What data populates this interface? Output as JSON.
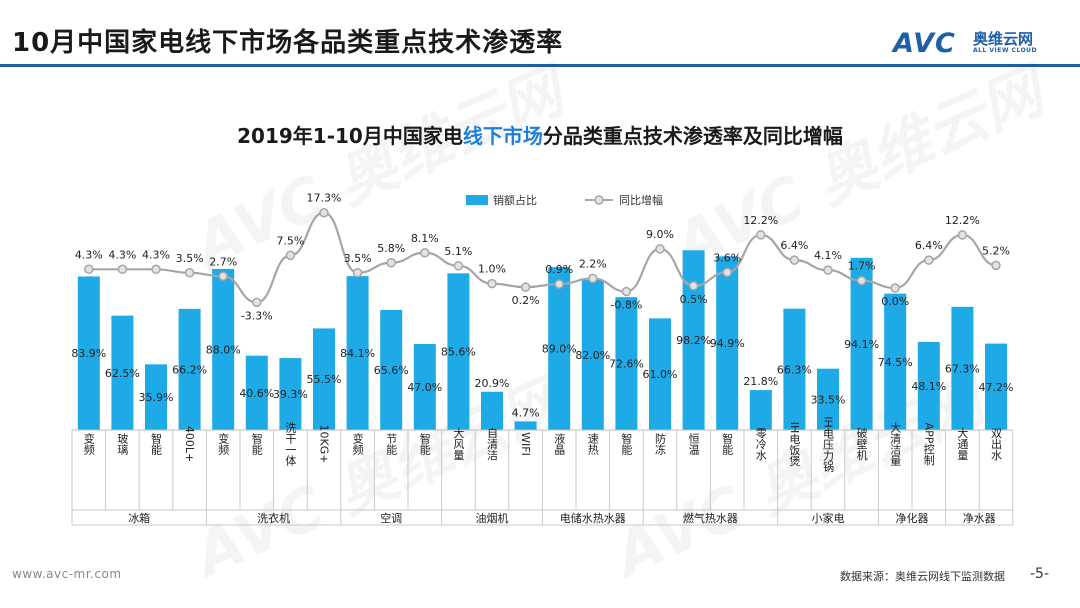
{
  "page_title": "10月中国家电线下市场各品类重点技术渗透率",
  "logo": {
    "mark": "AVC",
    "cn": "奥维云网",
    "en": "ALL VIEW CLOUD"
  },
  "chart_title": {
    "before": "2019年1-10月中国家电",
    "highlight": "线下市场",
    "after": "分品类重点技术渗透率及同比增幅"
  },
  "watermark": "AVC 奥维云网",
  "footer": {
    "url": "www.avc-mr.com",
    "source": "数据来源：奥维云网线下监测数据",
    "page": "-5-"
  },
  "colors": {
    "bar": "#1eaae7",
    "line": "#a6a6a6",
    "marker_fill": "#e3e3e3",
    "brand": "#1f5fa8",
    "highlight": "#1f7fd6"
  },
  "chart_data": {
    "type": "bar",
    "legend_position": "top-center",
    "grid": false,
    "series": [
      {
        "name": "销额占比",
        "type": "bar",
        "labels": [
          "83.9%",
          "62.5%",
          "35.9%",
          "66.2%",
          "88.0%",
          "40.6%",
          "39.3%",
          "55.5%",
          "84.1%",
          "65.6%",
          "47.0%",
          "85.6%",
          "20.9%",
          "4.7%",
          "89.0%",
          "82.0%",
          "72.6%",
          "61.0%",
          "98.2%",
          "94.9%",
          "21.8%",
          "66.3%",
          "33.5%",
          "94.1%",
          "74.5%",
          "48.1%",
          "67.3%",
          "47.2%"
        ],
        "values": [
          83.9,
          62.5,
          35.9,
          66.2,
          88.0,
          40.6,
          39.3,
          55.5,
          84.1,
          65.6,
          47.0,
          85.6,
          20.9,
          4.7,
          89.0,
          82.0,
          72.6,
          61.0,
          98.2,
          94.9,
          21.8,
          66.3,
          33.5,
          94.1,
          74.5,
          48.1,
          67.3,
          47.2
        ]
      },
      {
        "name": "同比增幅",
        "type": "line",
        "labels": [
          "4.3%",
          "4.3%",
          "4.3%",
          "3.5%",
          "2.7%",
          "-3.3%",
          "7.5%",
          "17.3%",
          "3.5%",
          "5.8%",
          "8.1%",
          "5.1%",
          "1.0%",
          "0.2%",
          "0.9%",
          "2.2%",
          "-0.8%",
          "9.0%",
          "0.5%",
          "3.6%",
          "12.2%",
          "6.4%",
          "4.1%",
          "1.7%",
          "0.0%",
          "6.4%",
          "12.2%",
          "5.2%"
        ],
        "values": [
          4.3,
          4.3,
          4.3,
          3.5,
          2.7,
          -3.3,
          7.5,
          17.3,
          3.5,
          5.8,
          8.1,
          5.1,
          1.0,
          0.2,
          0.9,
          2.2,
          -0.8,
          9.0,
          0.5,
          3.6,
          12.2,
          6.4,
          4.1,
          1.7,
          0.0,
          6.4,
          12.2,
          5.2
        ]
      }
    ],
    "categories": [
      "变频",
      "玻璃",
      "智能",
      "400L+",
      "变频",
      "智能",
      "洗干一体",
      "10KG+",
      "变频",
      "节能",
      "智能",
      "大风量",
      "自清洁",
      "WIFI",
      "液晶",
      "速热",
      "智能",
      "防冻",
      "恒温",
      "智能",
      "零冷水",
      "IH电饭煲",
      "IH电压力锅",
      "破壁机",
      "大清洁量",
      "APP控制",
      "大通量",
      "双出水"
    ],
    "groups": [
      {
        "name": "冰箱",
        "count": 4
      },
      {
        "name": "洗衣机",
        "count": 4
      },
      {
        "name": "空调",
        "count": 3
      },
      {
        "name": "油烟机",
        "count": 3
      },
      {
        "name": "电储水热水器",
        "count": 3
      },
      {
        "name": "燃气热水器",
        "count": 4
      },
      {
        "name": "小家电",
        "count": 3
      },
      {
        "name": "净化器",
        "count": 2
      },
      {
        "name": "净水器",
        "count": 2
      }
    ]
  }
}
